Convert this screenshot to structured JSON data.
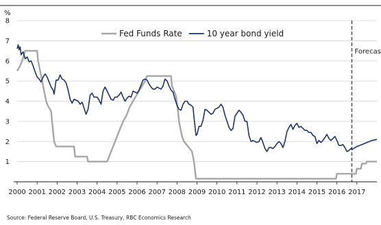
{
  "chart_data": {
    "type": "line",
    "unit_label": "%",
    "ylim": [
      0,
      8
    ],
    "y_ticks": [
      "1",
      "2",
      "3",
      "4",
      "5",
      "6",
      "7",
      "8"
    ],
    "xlim": [
      2000,
      2018
    ],
    "x_ticks": [
      "2000",
      "2001",
      "2002",
      "2003",
      "2004",
      "2005",
      "2006",
      "2007",
      "2008",
      "2009",
      "2010",
      "2011",
      "2012",
      "2013",
      "2014",
      "2015",
      "2016",
      "2017"
    ],
    "grid": "horizontal",
    "legend": "top",
    "forecast_label": "Forecast",
    "forecast_x": 2016.75,
    "series": [
      {
        "name": "Fed Funds Rate",
        "color": "#a6a6a6",
        "points": [
          [
            2000.0,
            5.5
          ],
          [
            2000.15,
            5.75
          ],
          [
            2000.25,
            6.0
          ],
          [
            2000.4,
            6.5
          ],
          [
            2001.0,
            6.5
          ],
          [
            2001.05,
            6.0
          ],
          [
            2001.15,
            5.5
          ],
          [
            2001.25,
            5.0
          ],
          [
            2001.35,
            4.5
          ],
          [
            2001.45,
            4.0
          ],
          [
            2001.55,
            3.75
          ],
          [
            2001.7,
            3.5
          ],
          [
            2001.75,
            3.0
          ],
          [
            2001.8,
            2.5
          ],
          [
            2001.85,
            2.0
          ],
          [
            2001.95,
            1.75
          ],
          [
            2002.85,
            1.75
          ],
          [
            2002.9,
            1.25
          ],
          [
            2003.5,
            1.25
          ],
          [
            2003.55,
            1.0
          ],
          [
            2004.5,
            1.0
          ],
          [
            2004.6,
            1.25
          ],
          [
            2004.7,
            1.5
          ],
          [
            2004.8,
            1.75
          ],
          [
            2004.9,
            2.0
          ],
          [
            2005.0,
            2.25
          ],
          [
            2005.1,
            2.5
          ],
          [
            2005.2,
            2.75
          ],
          [
            2005.3,
            3.0
          ],
          [
            2005.45,
            3.25
          ],
          [
            2005.55,
            3.5
          ],
          [
            2005.65,
            3.75
          ],
          [
            2005.8,
            4.0
          ],
          [
            2005.95,
            4.25
          ],
          [
            2006.1,
            4.5
          ],
          [
            2006.25,
            4.75
          ],
          [
            2006.4,
            5.0
          ],
          [
            2006.5,
            5.25
          ],
          [
            2007.7,
            5.25
          ],
          [
            2007.75,
            4.75
          ],
          [
            2007.85,
            4.5
          ],
          [
            2007.95,
            4.25
          ],
          [
            2008.05,
            3.5
          ],
          [
            2008.1,
            3.0
          ],
          [
            2008.25,
            2.25
          ],
          [
            2008.35,
            2.0
          ],
          [
            2008.75,
            1.5
          ],
          [
            2008.85,
            1.0
          ],
          [
            2008.95,
            0.15
          ],
          [
            2015.95,
            0.15
          ],
          [
            2016.0,
            0.4
          ],
          [
            2016.95,
            0.4
          ],
          [
            2017.0,
            0.65
          ],
          [
            2017.2,
            0.65
          ],
          [
            2017.25,
            0.9
          ],
          [
            2017.45,
            0.9
          ],
          [
            2017.5,
            1.0
          ],
          [
            2018.0,
            1.0
          ]
        ]
      },
      {
        "name": "10 year bond yield",
        "color": "#1f3264",
        "points": [
          [
            2000.0,
            6.6
          ],
          [
            2000.05,
            6.8
          ],
          [
            2000.1,
            6.55
          ],
          [
            2000.15,
            6.7
          ],
          [
            2000.2,
            6.3
          ],
          [
            2000.3,
            6.45
          ],
          [
            2000.4,
            6.1
          ],
          [
            2000.5,
            6.2
          ],
          [
            2000.6,
            5.95
          ],
          [
            2000.7,
            6.0
          ],
          [
            2000.8,
            5.75
          ],
          [
            2000.9,
            5.45
          ],
          [
            2001.0,
            5.2
          ],
          [
            2001.1,
            5.1
          ],
          [
            2001.2,
            4.95
          ],
          [
            2001.3,
            5.2
          ],
          [
            2001.4,
            5.35
          ],
          [
            2001.5,
            5.2
          ],
          [
            2001.6,
            4.95
          ],
          [
            2001.7,
            4.7
          ],
          [
            2001.8,
            4.55
          ],
          [
            2001.85,
            4.35
          ],
          [
            2001.95,
            5.05
          ],
          [
            2002.05,
            5.05
          ],
          [
            2002.15,
            5.3
          ],
          [
            2002.25,
            5.1
          ],
          [
            2002.35,
            5.05
          ],
          [
            2002.45,
            4.9
          ],
          [
            2002.55,
            4.55
          ],
          [
            2002.65,
            4.1
          ],
          [
            2002.75,
            3.9
          ],
          [
            2002.85,
            4.1
          ],
          [
            2002.95,
            4.05
          ],
          [
            2003.05,
            4.0
          ],
          [
            2003.15,
            3.85
          ],
          [
            2003.25,
            3.95
          ],
          [
            2003.35,
            3.65
          ],
          [
            2003.45,
            3.35
          ],
          [
            2003.55,
            3.6
          ],
          [
            2003.65,
            4.3
          ],
          [
            2003.75,
            4.4
          ],
          [
            2003.85,
            4.2
          ],
          [
            2004.0,
            4.2
          ],
          [
            2004.1,
            4.05
          ],
          [
            2004.2,
            3.85
          ],
          [
            2004.3,
            4.5
          ],
          [
            2004.4,
            4.7
          ],
          [
            2004.5,
            4.5
          ],
          [
            2004.6,
            4.3
          ],
          [
            2004.7,
            4.1
          ],
          [
            2004.8,
            4.05
          ],
          [
            2004.9,
            4.2
          ],
          [
            2005.0,
            4.2
          ],
          [
            2005.1,
            4.3
          ],
          [
            2005.2,
            4.45
          ],
          [
            2005.3,
            4.2
          ],
          [
            2005.4,
            4.0
          ],
          [
            2005.5,
            4.15
          ],
          [
            2005.6,
            4.25
          ],
          [
            2005.7,
            4.2
          ],
          [
            2005.8,
            4.5
          ],
          [
            2005.9,
            4.45
          ],
          [
            2006.0,
            4.4
          ],
          [
            2006.1,
            4.55
          ],
          [
            2006.2,
            4.8
          ],
          [
            2006.3,
            5.05
          ],
          [
            2006.4,
            5.1
          ],
          [
            2006.5,
            5.05
          ],
          [
            2006.6,
            4.85
          ],
          [
            2006.7,
            4.7
          ],
          [
            2006.8,
            4.6
          ],
          [
            2006.9,
            4.6
          ],
          [
            2007.0,
            4.7
          ],
          [
            2007.1,
            4.65
          ],
          [
            2007.2,
            4.6
          ],
          [
            2007.3,
            4.75
          ],
          [
            2007.4,
            5.1
          ],
          [
            2007.5,
            5.0
          ],
          [
            2007.6,
            4.75
          ],
          [
            2007.7,
            4.55
          ],
          [
            2007.8,
            4.45
          ],
          [
            2007.9,
            4.1
          ],
          [
            2008.0,
            3.8
          ],
          [
            2008.1,
            3.6
          ],
          [
            2008.2,
            3.55
          ],
          [
            2008.3,
            3.85
          ],
          [
            2008.4,
            4.0
          ],
          [
            2008.5,
            4.0
          ],
          [
            2008.6,
            3.85
          ],
          [
            2008.7,
            3.8
          ],
          [
            2008.8,
            3.7
          ],
          [
            2008.85,
            3.2
          ],
          [
            2008.95,
            2.3
          ],
          [
            2009.0,
            2.35
          ],
          [
            2009.1,
            2.75
          ],
          [
            2009.2,
            2.75
          ],
          [
            2009.3,
            3.05
          ],
          [
            2009.4,
            3.6
          ],
          [
            2009.5,
            3.55
          ],
          [
            2009.6,
            3.45
          ],
          [
            2009.7,
            3.35
          ],
          [
            2009.8,
            3.4
          ],
          [
            2009.9,
            3.6
          ],
          [
            2010.0,
            3.65
          ],
          [
            2010.1,
            3.7
          ],
          [
            2010.2,
            3.85
          ],
          [
            2010.3,
            3.7
          ],
          [
            2010.4,
            3.3
          ],
          [
            2010.5,
            3.0
          ],
          [
            2010.6,
            2.7
          ],
          [
            2010.7,
            2.55
          ],
          [
            2010.8,
            2.65
          ],
          [
            2010.9,
            3.25
          ],
          [
            2011.0,
            3.4
          ],
          [
            2011.1,
            3.55
          ],
          [
            2011.2,
            3.45
          ],
          [
            2011.3,
            3.3
          ],
          [
            2011.4,
            3.0
          ],
          [
            2011.5,
            3.0
          ],
          [
            2011.6,
            2.3
          ],
          [
            2011.7,
            2.0
          ],
          [
            2011.8,
            2.05
          ],
          [
            2011.9,
            2.0
          ],
          [
            2012.0,
            1.95
          ],
          [
            2012.1,
            2.0
          ],
          [
            2012.2,
            2.2
          ],
          [
            2012.3,
            1.95
          ],
          [
            2012.4,
            1.65
          ],
          [
            2012.5,
            1.5
          ],
          [
            2012.6,
            1.7
          ],
          [
            2012.7,
            1.7
          ],
          [
            2012.8,
            1.65
          ],
          [
            2012.9,
            1.75
          ],
          [
            2013.0,
            1.9
          ],
          [
            2013.1,
            2.0
          ],
          [
            2013.2,
            1.9
          ],
          [
            2013.3,
            1.7
          ],
          [
            2013.4,
            2.0
          ],
          [
            2013.5,
            2.5
          ],
          [
            2013.6,
            2.7
          ],
          [
            2013.7,
            2.85
          ],
          [
            2013.8,
            2.6
          ],
          [
            2013.9,
            2.8
          ],
          [
            2014.0,
            2.9
          ],
          [
            2014.1,
            2.7
          ],
          [
            2014.2,
            2.75
          ],
          [
            2014.3,
            2.65
          ],
          [
            2014.4,
            2.55
          ],
          [
            2014.5,
            2.55
          ],
          [
            2014.6,
            2.45
          ],
          [
            2014.7,
            2.45
          ],
          [
            2014.8,
            2.3
          ],
          [
            2014.9,
            2.25
          ],
          [
            2015.0,
            1.9
          ],
          [
            2015.1,
            2.05
          ],
          [
            2015.2,
            1.95
          ],
          [
            2015.3,
            2.05
          ],
          [
            2015.4,
            2.2
          ],
          [
            2015.5,
            2.35
          ],
          [
            2015.6,
            2.15
          ],
          [
            2015.7,
            2.05
          ],
          [
            2015.8,
            2.15
          ],
          [
            2015.9,
            2.25
          ],
          [
            2016.0,
            2.05
          ],
          [
            2016.1,
            1.8
          ],
          [
            2016.2,
            1.8
          ],
          [
            2016.3,
            1.85
          ],
          [
            2016.4,
            1.7
          ],
          [
            2016.5,
            1.5
          ],
          [
            2016.6,
            1.55
          ],
          [
            2016.7,
            1.65
          ],
          [
            2016.75,
            1.6
          ],
          [
            2017.0,
            1.75
          ],
          [
            2017.25,
            1.85
          ],
          [
            2017.5,
            1.95
          ],
          [
            2017.75,
            2.05
          ],
          [
            2018.0,
            2.1
          ]
        ]
      }
    ]
  },
  "source": "Source: Federal Reserve Board, U.S. Treasury, RBC Economics Research"
}
